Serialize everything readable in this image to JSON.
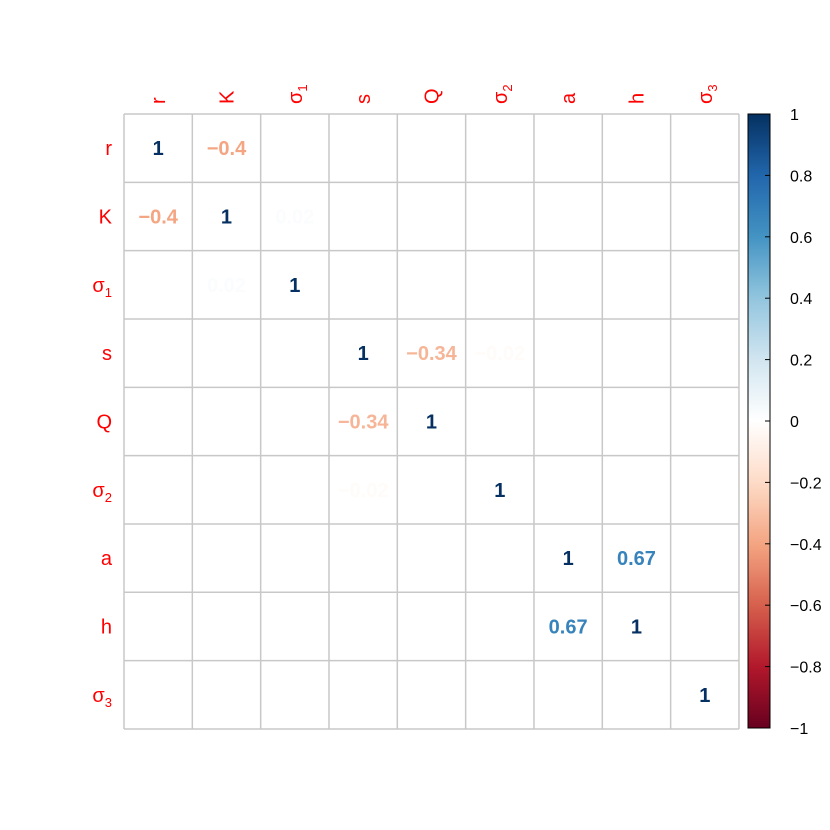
{
  "chart_data": {
    "type": "heatmap",
    "title": "",
    "variables": [
      {
        "name": "r",
        "sub": ""
      },
      {
        "name": "K",
        "sub": ""
      },
      {
        "name": "σ",
        "sub": "1"
      },
      {
        "name": "s",
        "sub": ""
      },
      {
        "name": "Q",
        "sub": ""
      },
      {
        "name": "σ",
        "sub": "2"
      },
      {
        "name": "a",
        "sub": ""
      },
      {
        "name": "h",
        "sub": ""
      },
      {
        "name": "σ",
        "sub": "3"
      }
    ],
    "matrix": [
      [
        1,
        -0.4,
        0,
        0,
        0,
        0,
        0,
        0,
        0
      ],
      [
        -0.4,
        1,
        0.02,
        0,
        0,
        0,
        0,
        0,
        0
      ],
      [
        0,
        0.02,
        1,
        0,
        0,
        0,
        0,
        0,
        0
      ],
      [
        0,
        0,
        0,
        1,
        -0.34,
        -0.02,
        0,
        0,
        0
      ],
      [
        0,
        0,
        0,
        -0.34,
        1,
        0,
        0,
        0,
        0
      ],
      [
        0,
        0,
        0,
        -0.02,
        0,
        1,
        0,
        0,
        0
      ],
      [
        0,
        0,
        0,
        0,
        0,
        0,
        1,
        0.67,
        0
      ],
      [
        0,
        0,
        0,
        0,
        0,
        0,
        0.67,
        1,
        0
      ],
      [
        0,
        0,
        0,
        0,
        0,
        0,
        0,
        0,
        1
      ]
    ],
    "value_labels": [
      [
        "1",
        "−0.4",
        "",
        "",
        "",
        "",
        "",
        "",
        ""
      ],
      [
        "−0.4",
        "1",
        "0.02",
        "",
        "",
        "",
        "",
        "",
        ""
      ],
      [
        "",
        "0.02",
        "1",
        "",
        "",
        "",
        "",
        "",
        ""
      ],
      [
        "",
        "",
        "",
        "1",
        "−0.34",
        "−0.02",
        "",
        "",
        ""
      ],
      [
        "",
        "",
        "",
        "−0.34",
        "1",
        "",
        "",
        "",
        ""
      ],
      [
        "",
        "",
        "",
        "−0.02",
        "",
        "1",
        "",
        "",
        ""
      ],
      [
        "",
        "",
        "",
        "",
        "",
        "",
        "1",
        "0.67",
        ""
      ],
      [
        "",
        "",
        "",
        "",
        "",
        "",
        "0.67",
        "1",
        ""
      ],
      [
        "",
        "",
        "",
        "",
        "",
        "",
        "",
        "",
        "1"
      ]
    ],
    "colorbar": {
      "range": [
        -1,
        1
      ],
      "ticks": [
        1,
        0.8,
        0.6,
        0.4,
        0.2,
        0,
        -0.2,
        -0.4,
        -0.6,
        -0.8,
        -1
      ],
      "tick_labels": [
        "1",
        "0.8",
        "0.6",
        "0.4",
        "0.2",
        "0",
        "−0.2",
        "−0.4",
        "−0.6",
        "−0.8",
        "−1"
      ],
      "placement": "right"
    },
    "label_color": "#ff0000",
    "grid": true
  }
}
